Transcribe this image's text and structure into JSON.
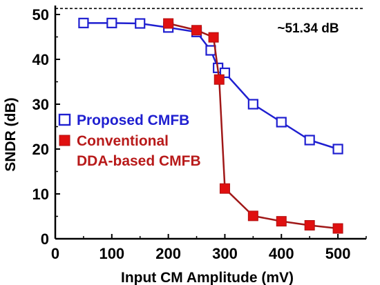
{
  "chart_data": {
    "type": "line",
    "xlabel": "Input CM Amplitude (mV)",
    "ylabel": "SNDR (dB)",
    "xlim": [
      0,
      550
    ],
    "ylim": [
      0,
      52
    ],
    "xticks": [
      0,
      100,
      200,
      300,
      400,
      500
    ],
    "yticks": [
      0,
      10,
      20,
      30,
      40,
      50
    ],
    "grid": false,
    "legend_position": "left-middle",
    "series": [
      {
        "name": "Proposed CMFB",
        "color": "#1f1fd0",
        "marker": "open-square",
        "x": [
          50,
          100,
          150,
          200,
          250,
          275,
          288,
          300,
          350,
          400,
          450,
          500
        ],
        "y": [
          48.1,
          48.1,
          48.0,
          47.1,
          46.1,
          42.0,
          38.1,
          37.0,
          30.0,
          26.0,
          22.0,
          20.0
        ]
      },
      {
        "name": "Conventional DDA-based CMFB",
        "name_lines": [
          "Conventional",
          "DDA-based CMFB"
        ],
        "color": "#e01010",
        "line_color": "#a01818",
        "marker": "filled-square",
        "x": [
          200,
          250,
          280,
          290,
          300,
          350,
          400,
          450,
          500
        ],
        "y": [
          48.0,
          46.5,
          44.9,
          35.5,
          11.2,
          5.1,
          3.9,
          3.0,
          2.3
        ]
      }
    ],
    "reference_line": {
      "y": 51.34,
      "style": "dashed",
      "label": "~51.34 dB"
    }
  }
}
